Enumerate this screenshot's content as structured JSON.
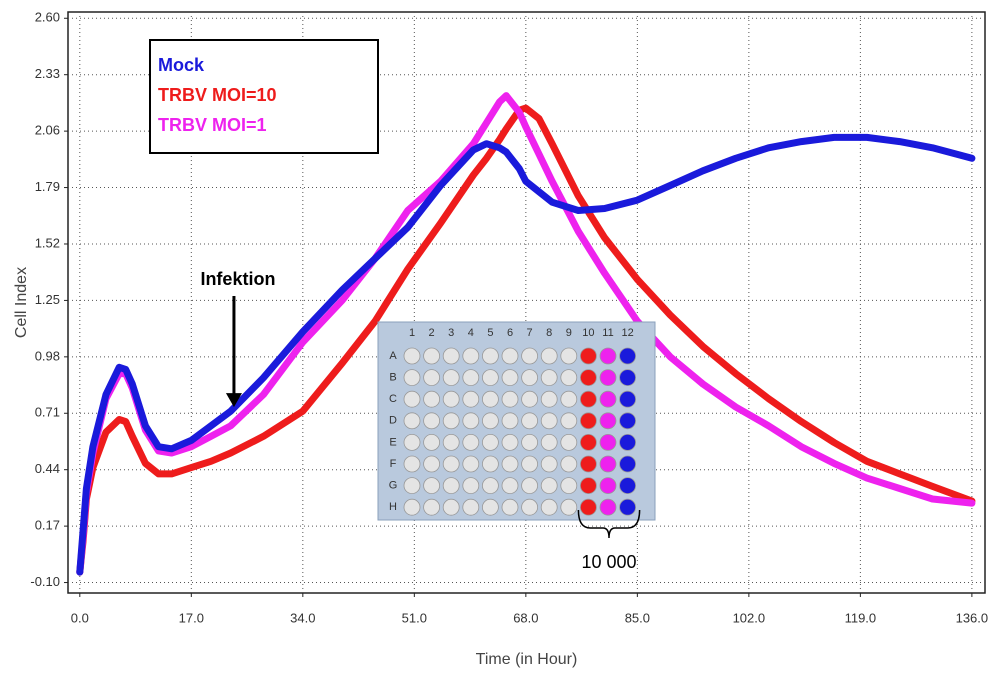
{
  "chart_data": {
    "type": "line",
    "x_label": "Time (in Hour)",
    "y_label": "Cell Index",
    "xlim": [
      -1.8,
      138
    ],
    "ylim": [
      -0.15,
      2.63
    ],
    "xticks": [
      {
        "value": 0,
        "label": "0.0"
      },
      {
        "value": 17,
        "label": "17.0"
      },
      {
        "value": 34,
        "label": "34.0"
      },
      {
        "value": 51,
        "label": "51.0"
      },
      {
        "value": 68,
        "label": "68.0"
      },
      {
        "value": 85,
        "label": "85.0"
      },
      {
        "value": 102,
        "label": "102.0"
      },
      {
        "value": 119,
        "label": "119.0"
      },
      {
        "value": 136,
        "label": "136.0"
      }
    ],
    "yticks": [
      {
        "value": -0.1,
        "label": "-0.10"
      },
      0.17,
      0.44,
      0.71,
      0.98,
      1.25,
      1.52,
      1.79,
      2.06,
      2.33,
      {
        "value": 2.6,
        "label": "2.60"
      }
    ],
    "grid": true,
    "legend": "upper left",
    "x": [
      0,
      0.5,
      1,
      2,
      4,
      6,
      7,
      8,
      10,
      12,
      14,
      17,
      20,
      23,
      28,
      34,
      40,
      45,
      50,
      55,
      60,
      62,
      64,
      65,
      67,
      68,
      70,
      72,
      76,
      80,
      85,
      90,
      95,
      100,
      105,
      110,
      115,
      120,
      125,
      130,
      136
    ],
    "series": [
      {
        "name": "Mock",
        "color": "#1a1adb",
        "values": [
          -0.05,
          0.15,
          0.35,
          0.55,
          0.8,
          0.93,
          0.92,
          0.85,
          0.65,
          0.55,
          0.54,
          0.58,
          0.65,
          0.72,
          0.88,
          1.1,
          1.3,
          1.45,
          1.6,
          1.8,
          1.97,
          2.0,
          1.98,
          1.96,
          1.88,
          1.82,
          1.77,
          1.72,
          1.68,
          1.69,
          1.73,
          1.8,
          1.87,
          1.93,
          1.98,
          2.01,
          2.03,
          2.03,
          2.01,
          1.98,
          1.93
        ]
      },
      {
        "name": "TRBV MOI=10",
        "color": "#ee1c1c",
        "values": [
          -0.05,
          0.1,
          0.3,
          0.45,
          0.62,
          0.68,
          0.67,
          0.6,
          0.47,
          0.42,
          0.42,
          0.45,
          0.48,
          0.52,
          0.6,
          0.72,
          0.95,
          1.15,
          1.4,
          1.62,
          1.85,
          1.93,
          2.02,
          2.07,
          2.16,
          2.17,
          2.12,
          2.0,
          1.75,
          1.55,
          1.35,
          1.18,
          1.03,
          0.9,
          0.78,
          0.67,
          0.57,
          0.48,
          0.42,
          0.36,
          0.29
        ]
      },
      {
        "name": "TRBV MOI=1",
        "color": "#ee22ee",
        "values": [
          -0.05,
          0.12,
          0.33,
          0.52,
          0.78,
          0.9,
          0.9,
          0.83,
          0.63,
          0.53,
          0.52,
          0.55,
          0.6,
          0.65,
          0.8,
          1.05,
          1.25,
          1.45,
          1.68,
          1.82,
          2.0,
          2.1,
          2.2,
          2.23,
          2.15,
          2.08,
          1.95,
          1.82,
          1.58,
          1.38,
          1.15,
          0.98,
          0.85,
          0.74,
          0.65,
          0.55,
          0.47,
          0.4,
          0.35,
          0.3,
          0.28
        ]
      }
    ],
    "annotations": [
      {
        "text": "Infektion",
        "x": 23.5,
        "y": 0.73
      }
    ],
    "plate": {
      "columns": [
        "1",
        "2",
        "3",
        "4",
        "5",
        "6",
        "7",
        "8",
        "9",
        "10",
        "11",
        "12"
      ],
      "rows": [
        "A",
        "B",
        "C",
        "D",
        "E",
        "F",
        "G",
        "H"
      ],
      "label": "10 000"
    }
  }
}
